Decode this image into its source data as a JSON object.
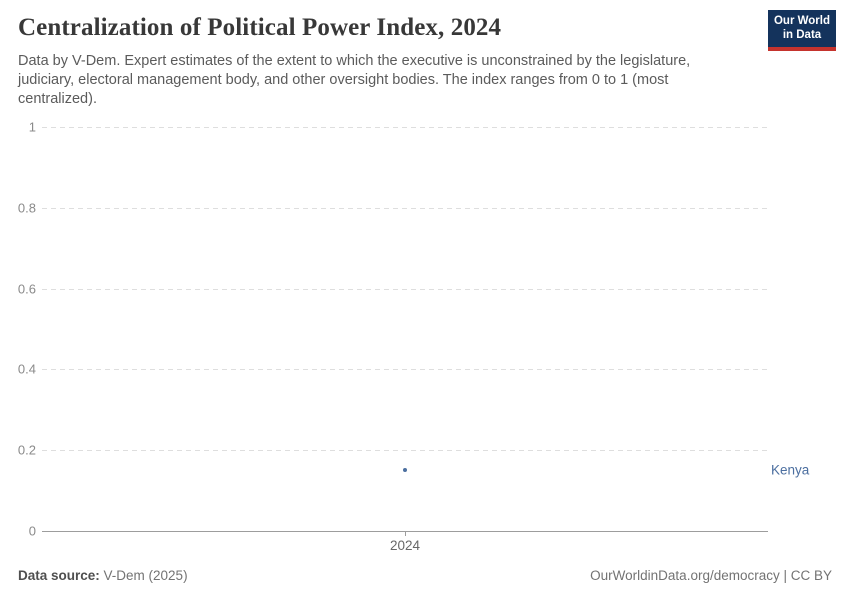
{
  "header": {
    "title": "Centralization of Political Power Index, 2024",
    "subtitle": "Data by V-Dem. Expert estimates of the extent to which the executive is unconstrained by the legislature, judiciary, electoral management body, and other oversight bodies. The index ranges from 0 to 1 (most centralized).",
    "logo": {
      "line1": "Our World",
      "line2": "in Data",
      "bg_color": "#14335C",
      "bar_color": "#C5332D",
      "text_color": "#FFFFFF"
    }
  },
  "chart_data": {
    "type": "scatter",
    "title": "Centralization of Political Power Index, 2024",
    "series": [
      {
        "name": "Kenya",
        "color": "#4C6FA0",
        "points": [
          {
            "x": 2024,
            "y": 0.15
          }
        ]
      }
    ],
    "xlabel": "",
    "ylabel": "",
    "ylim": [
      0,
      1
    ],
    "yticks": [
      0,
      0.2,
      0.4,
      0.6,
      0.8,
      1
    ],
    "ytick_labels": [
      "0",
      "0.2",
      "0.4",
      "0.6",
      "0.8",
      "1"
    ],
    "xticks": [
      2024
    ],
    "xtick_labels": [
      "2024"
    ],
    "grid": "horizontal-dashed",
    "legend_position": "right-entity-label",
    "entity_label": "Kenya",
    "grid_color": "#dedede",
    "axis_color": "#9d9d9d"
  },
  "footer": {
    "source_label": "Data source:",
    "source_value": " V-Dem (2025)",
    "credit": "OurWorldinData.org/democracy | CC BY"
  }
}
